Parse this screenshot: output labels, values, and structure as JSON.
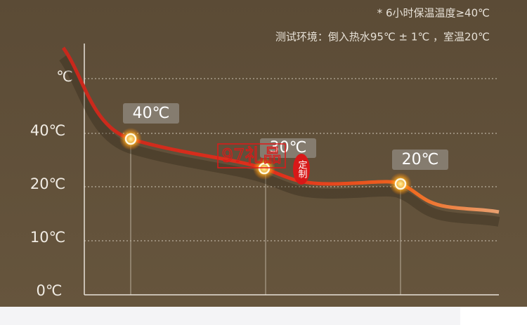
{
  "notes": [
    "* 6小时保温温度≥40℃",
    "测试环境：倒入热水95℃ ± 1℃ ，室温20℃"
  ],
  "axis_labels": [
    "℃",
    "40℃",
    "20℃",
    "10℃",
    "0℃"
  ],
  "point_labels": [
    "40℃",
    "30℃",
    "20℃"
  ],
  "watermark": {
    "brand": "97礼品",
    "seal": "定制"
  }
}
